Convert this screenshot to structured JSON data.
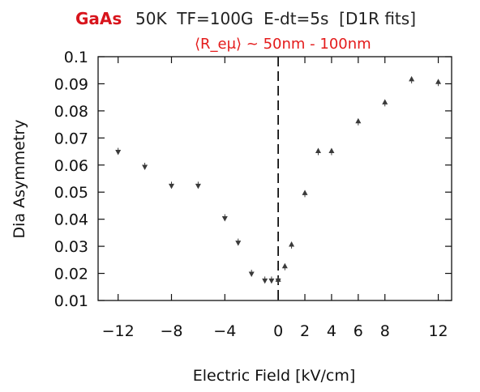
{
  "title": {
    "material": "GaAs",
    "rest": "50K  TF=100G  E-dt=5s  [D1R fits]"
  },
  "annotation": "⟨R_eμ⟩ ~ 50nm - 100nm",
  "annotation_color": "#e41b1b",
  "material_color": "#d8141c",
  "chart_data": {
    "type": "scatter",
    "title": "",
    "xlabel": "Electric Field [kV/cm]",
    "ylabel": "Dia Asymmetry",
    "xlim": [
      -13.5,
      13
    ],
    "ylim": [
      0.01,
      0.1
    ],
    "x_ticks": [
      -12,
      -8,
      -4,
      0,
      2,
      4,
      6,
      8,
      12
    ],
    "x_tick_labels": [
      "−12",
      "−8",
      "−4",
      "0",
      "2",
      "4",
      "6",
      "8",
      "12"
    ],
    "y_ticks": [
      0.01,
      0.02,
      0.03,
      0.04,
      0.05,
      0.06,
      0.07,
      0.08,
      0.09,
      0.1
    ],
    "y_tick_labels": [
      "0.01",
      "0.02",
      "0.03",
      "0.04",
      "0.05",
      "0.06",
      "0.07",
      "0.08",
      "0.09",
      "0.1"
    ],
    "vertical_line_x": 0,
    "grid": false,
    "series": [
      {
        "marker": "down-triangle",
        "x": [
          -12,
          -10,
          -8,
          -6,
          -4,
          -3,
          -2,
          -1,
          -0.5,
          0
        ],
        "y": [
          0.065,
          0.0595,
          0.0525,
          0.0525,
          0.0405,
          0.0315,
          0.02,
          0.0175,
          0.0175,
          0.0175
        ]
      },
      {
        "marker": "up-triangle",
        "x": [
          0,
          0.5,
          1,
          2,
          3,
          4,
          6,
          8,
          10,
          12
        ],
        "y": [
          0.0175,
          0.0225,
          0.0305,
          0.0495,
          0.065,
          0.065,
          0.076,
          0.083,
          0.0915,
          0.0905
        ]
      }
    ]
  }
}
